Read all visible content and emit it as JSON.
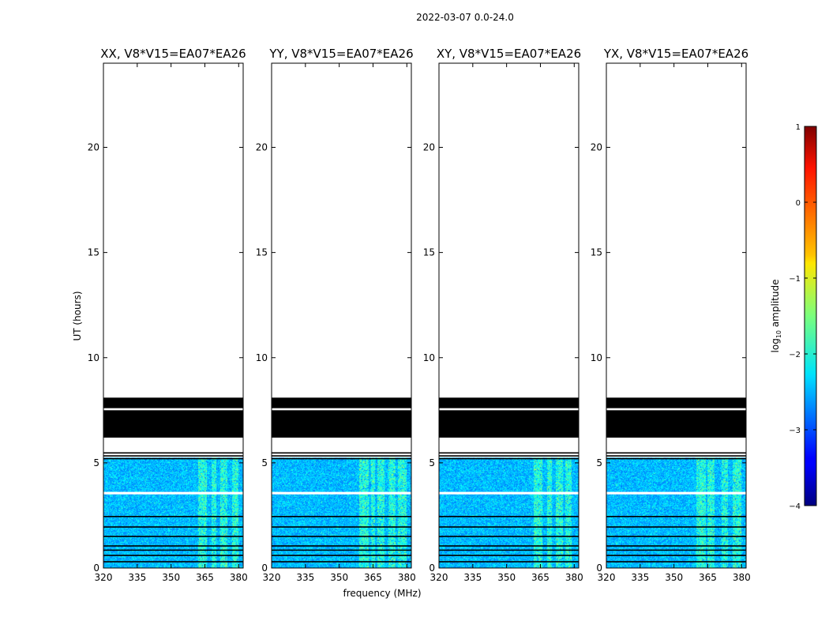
{
  "chart_data": {
    "type": "heatmap",
    "suptitle": "2022-03-07 0.0-24.0",
    "xlabel": "frequency (MHz)",
    "ylabel": "UT (hours)",
    "xlim": [
      320,
      382
    ],
    "ylim": [
      0,
      24
    ],
    "xticks": [
      320,
      335,
      350,
      365,
      380
    ],
    "yticks": [
      0,
      5,
      10,
      15,
      20
    ],
    "panels": [
      {
        "title": "XX, V8*V15=EA07*EA26",
        "bright_bands_mhz": [
          [
            362,
            366
          ],
          [
            368,
            370
          ],
          [
            372,
            375
          ],
          [
            377,
            380
          ]
        ]
      },
      {
        "title": "YY, V8*V15=EA07*EA26",
        "bright_bands_mhz": [
          [
            359,
            363
          ],
          [
            364,
            366
          ],
          [
            367,
            370
          ],
          [
            372,
            375
          ],
          [
            376,
            380
          ]
        ]
      },
      {
        "title": "XY, V8*V15=EA07*EA26",
        "bright_bands_mhz": [
          [
            362,
            366
          ],
          [
            368,
            370
          ],
          [
            372,
            375
          ],
          [
            376,
            379
          ]
        ]
      },
      {
        "title": "YX, V8*V15=EA07*EA26",
        "bright_bands_mhz": [
          [
            360,
            364
          ],
          [
            365,
            368
          ],
          [
            371,
            374
          ],
          [
            376,
            380
          ]
        ]
      }
    ],
    "flagged_blocks_hours": [
      [
        6.2,
        7.5
      ],
      [
        7.6,
        8.1
      ]
    ],
    "flagged_lines_hours": [
      5.2,
      5.33,
      5.47,
      2.45,
      1.95,
      1.5,
      1.05,
      0.85,
      0.6,
      0.3
    ],
    "data_extent_hours": [
      0,
      5.25
    ],
    "gap_hours": [
      3.5,
      3.62
    ],
    "colorbar": {
      "label": "log10 amplitude",
      "label_main": "log",
      "label_sub": "10",
      "label_tail": " amplitude",
      "range": [
        -4,
        1
      ],
      "ticks": [
        -4,
        -3,
        -2,
        -1,
        0,
        1
      ],
      "tick_labels": [
        "−4",
        "−3",
        "−2",
        "−1",
        "0",
        "1"
      ],
      "colormap": "jet"
    }
  }
}
